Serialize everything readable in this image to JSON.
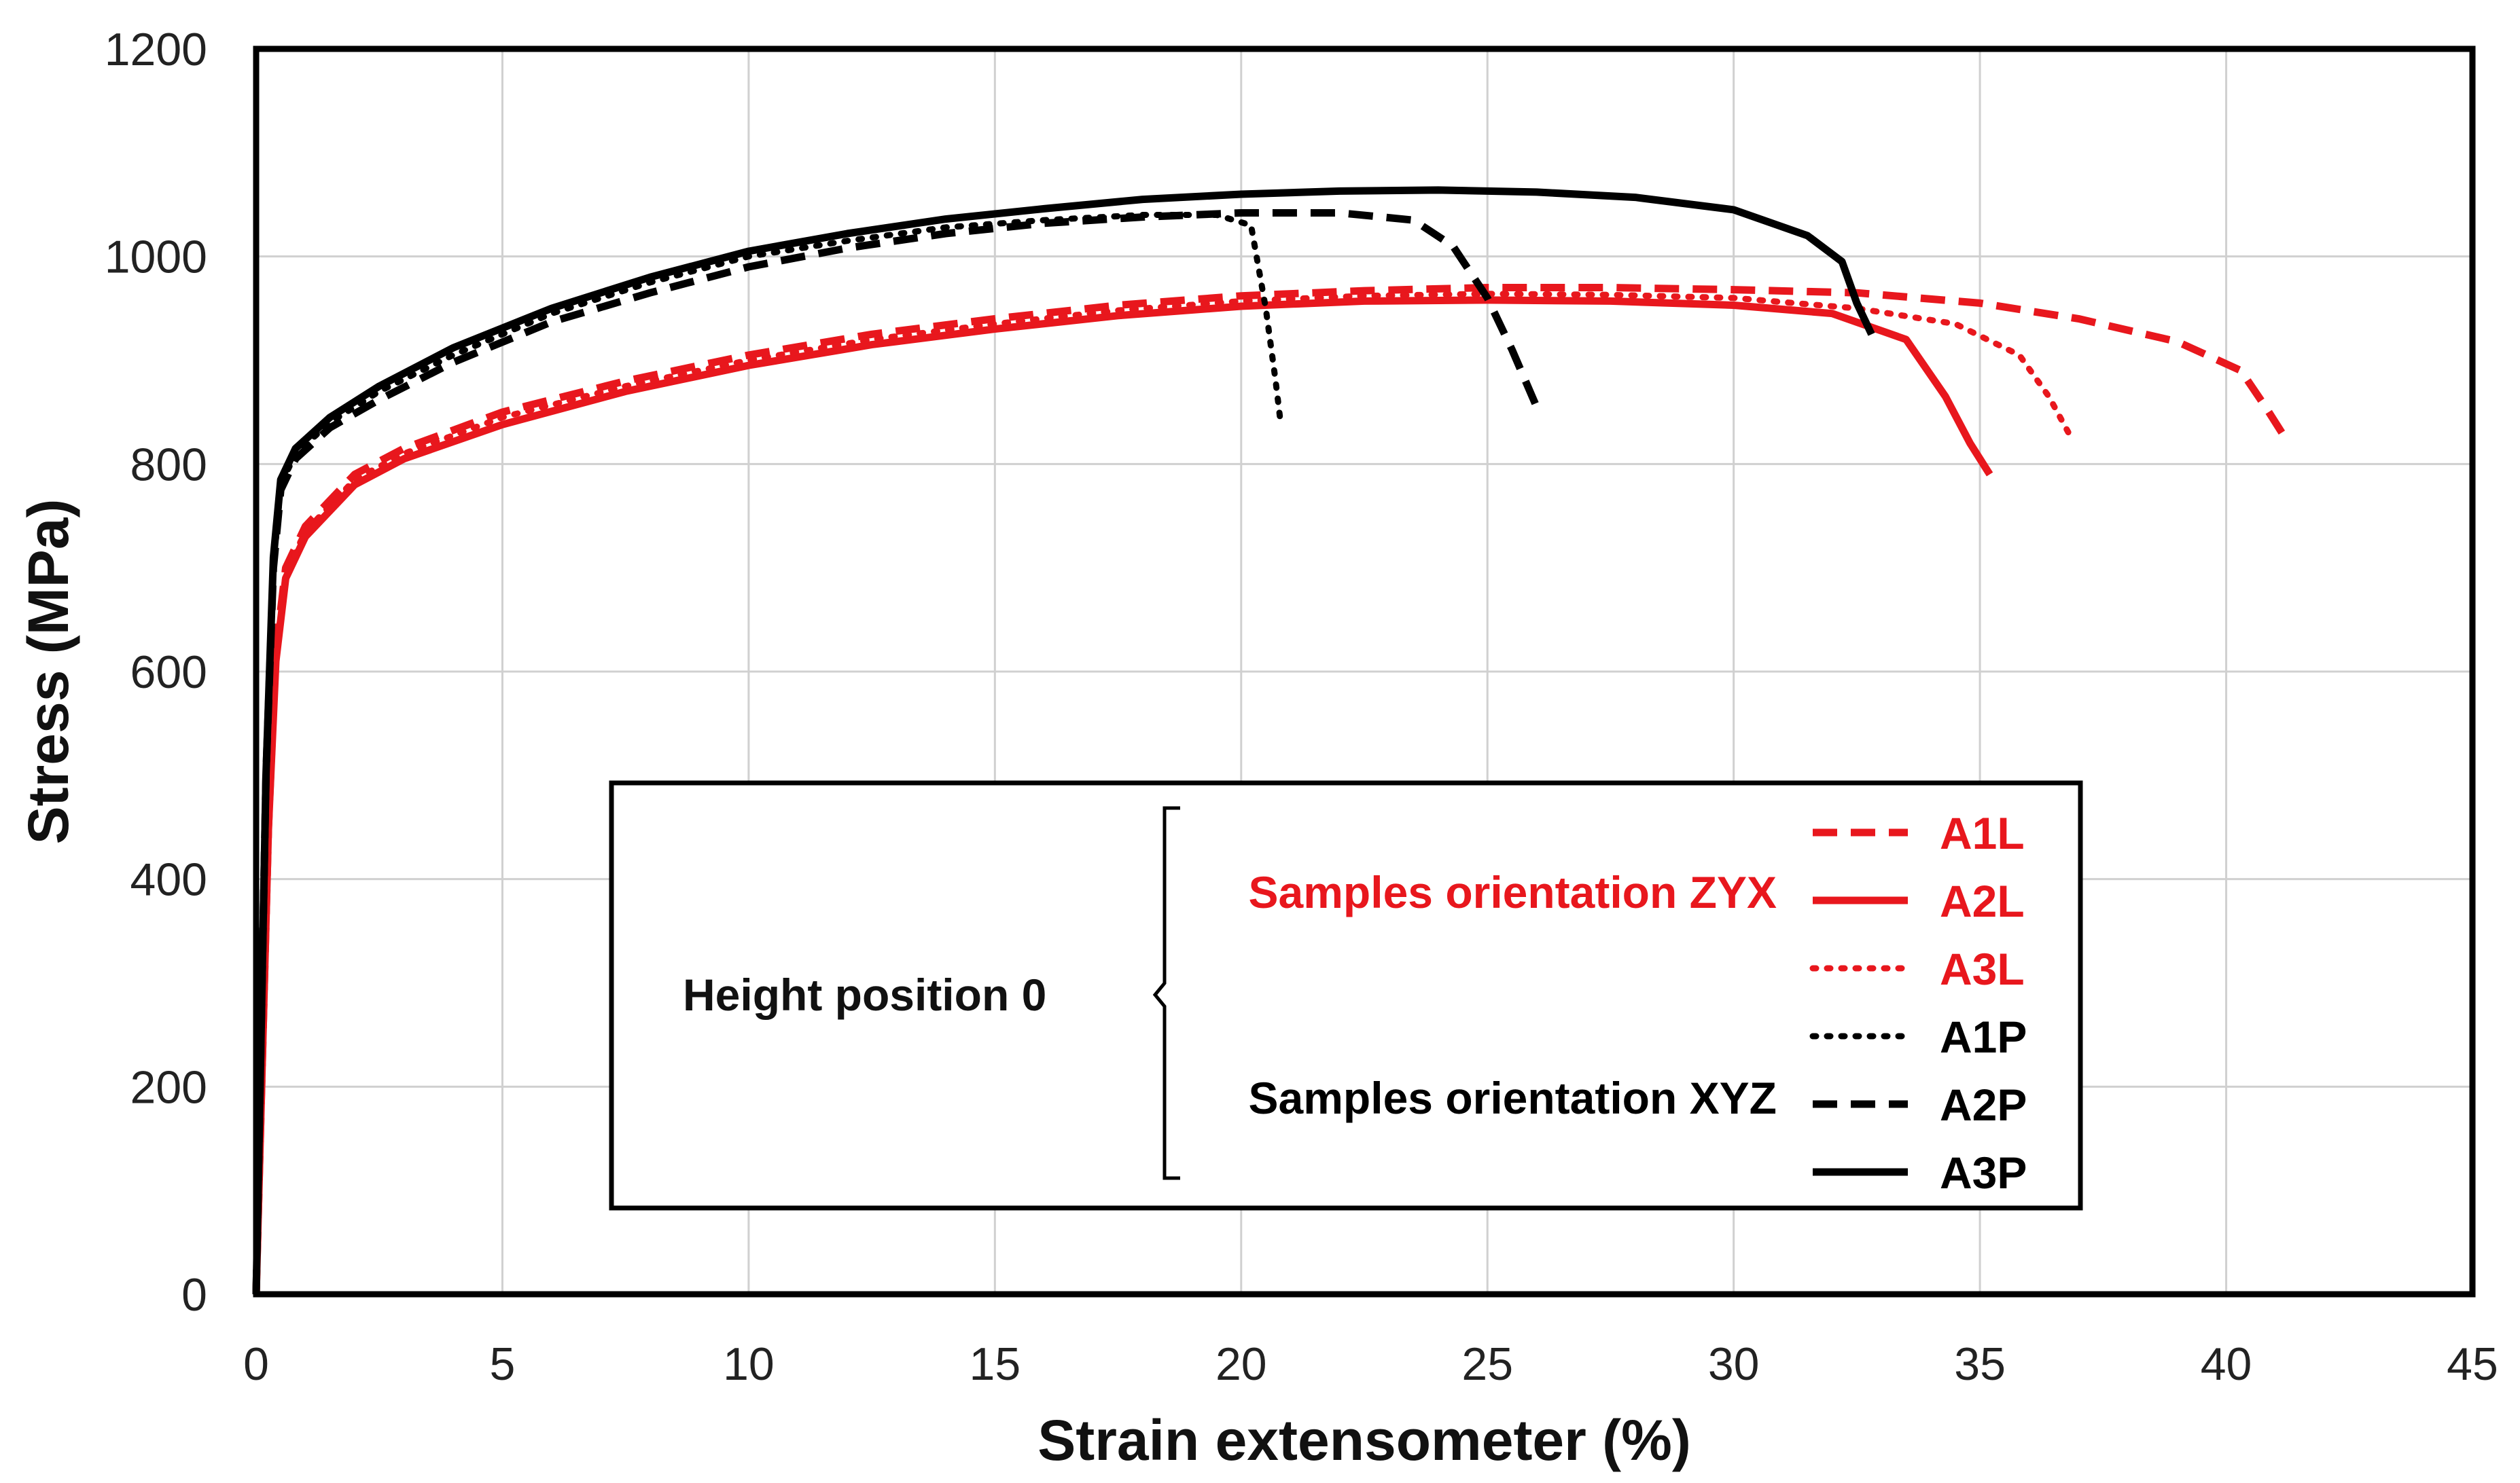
{
  "chart_data": {
    "type": "line",
    "title": "",
    "xlabel": "Strain extensometer (%)",
    "ylabel": "Stress (MPa)",
    "xlim": [
      0,
      45
    ],
    "ylim": [
      0,
      1200
    ],
    "xticks": [
      0,
      5,
      10,
      15,
      20,
      25,
      30,
      35,
      40,
      45
    ],
    "yticks": [
      0,
      200,
      400,
      600,
      800,
      1000,
      1200
    ],
    "grid": true,
    "legend": {
      "position": "bottom-center",
      "group_label": "Height position 0",
      "subgroups": [
        {
          "label": "Samples orientation ZYX",
          "color": "#e8171d",
          "series": [
            "A1L",
            "A2L",
            "A3L"
          ]
        },
        {
          "label": "Samples orientation XYZ",
          "color": "#000000",
          "series": [
            "A1P",
            "A2P",
            "A3P"
          ]
        }
      ]
    },
    "series": [
      {
        "name": "A1L",
        "color": "#e8171d",
        "style": "dashed",
        "x": [
          0,
          0.25,
          0.4,
          0.6,
          1,
          2,
          3,
          5,
          7.5,
          10,
          12.5,
          15,
          17.5,
          20,
          22.5,
          25,
          27.5,
          30,
          32.5,
          35,
          37,
          39,
          40.3,
          40.8,
          41.2
        ],
        "y": [
          0,
          450,
          620,
          700,
          740,
          790,
          815,
          850,
          880,
          905,
          925,
          940,
          953,
          962,
          967,
          970,
          970,
          968,
          965,
          955,
          940,
          918,
          890,
          855,
          825
        ]
      },
      {
        "name": "A2L",
        "color": "#e8171d",
        "style": "solid",
        "x": [
          0,
          0.25,
          0.4,
          0.6,
          1,
          2,
          3,
          5,
          7.5,
          10,
          12.5,
          15,
          17.5,
          20,
          22.5,
          25,
          27.5,
          30,
          32,
          33.5,
          34.3,
          34.8,
          35.2
        ],
        "y": [
          0,
          450,
          610,
          690,
          730,
          780,
          805,
          838,
          870,
          895,
          915,
          930,
          943,
          952,
          957,
          958,
          957,
          953,
          945,
          920,
          865,
          820,
          790
        ]
      },
      {
        "name": "A3L",
        "color": "#e8171d",
        "style": "dotted",
        "x": [
          0,
          0.25,
          0.4,
          0.6,
          1,
          2,
          3,
          5,
          7.5,
          10,
          12.5,
          15,
          17.5,
          20,
          22.5,
          25,
          27.5,
          30,
          32.5,
          34.5,
          35.8,
          36.4,
          36.8
        ],
        "y": [
          0,
          450,
          615,
          695,
          735,
          785,
          810,
          845,
          875,
          900,
          920,
          935,
          948,
          957,
          962,
          964,
          963,
          960,
          950,
          935,
          905,
          865,
          830
        ]
      },
      {
        "name": "A1P",
        "color": "#000000",
        "style": "dotted",
        "x": [
          0,
          0.2,
          0.35,
          0.5,
          0.8,
          1.5,
          2.5,
          4,
          6,
          8,
          10,
          12,
          14,
          16,
          18,
          19.5,
          20.2,
          20.5,
          20.7,
          20.8
        ],
        "y": [
          0,
          500,
          700,
          780,
          810,
          840,
          870,
          905,
          945,
          975,
          1000,
          1015,
          1028,
          1035,
          1040,
          1040,
          1030,
          950,
          880,
          840
        ]
      },
      {
        "name": "A2P",
        "color": "#000000",
        "style": "dashed",
        "x": [
          0,
          0.2,
          0.35,
          0.5,
          0.8,
          1.5,
          2.5,
          4,
          6,
          8,
          10,
          12,
          14,
          16,
          18,
          20,
          22,
          23.5,
          24.3,
          25,
          25.5,
          26
        ],
        "y": [
          0,
          500,
          700,
          775,
          805,
          835,
          862,
          898,
          937,
          965,
          990,
          1008,
          1022,
          1032,
          1038,
          1042,
          1042,
          1035,
          1010,
          960,
          910,
          855
        ]
      },
      {
        "name": "A3P",
        "color": "#000000",
        "style": "solid",
        "x": [
          0,
          0.2,
          0.35,
          0.5,
          0.8,
          1.5,
          2.5,
          4,
          6,
          8,
          10,
          12,
          14,
          16,
          18,
          20,
          22,
          24,
          26,
          28,
          30,
          31.5,
          32.2,
          32.5,
          32.8
        ],
        "y": [
          0,
          500,
          710,
          785,
          815,
          845,
          875,
          912,
          950,
          980,
          1005,
          1022,
          1036,
          1046,
          1055,
          1060,
          1063,
          1064,
          1062,
          1057,
          1045,
          1020,
          995,
          955,
          925
        ]
      }
    ]
  }
}
